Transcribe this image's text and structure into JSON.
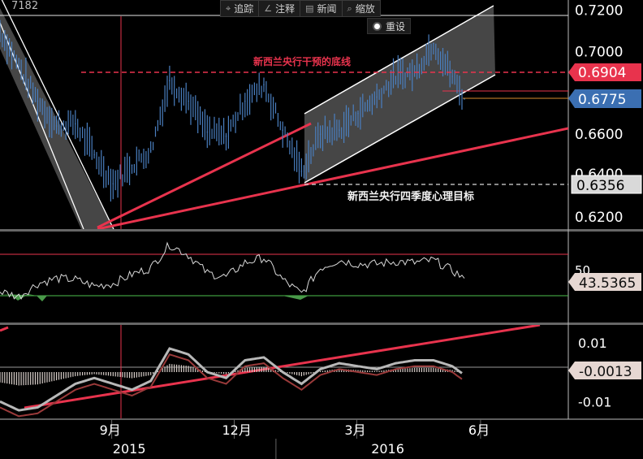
{
  "header": {
    "code_fragment": "7182"
  },
  "toolbar": {
    "items": [
      {
        "label": "追踪",
        "icon": "crosshair-icon"
      },
      {
        "label": "注释",
        "icon": "pencil-icon"
      },
      {
        "label": "新闻",
        "icon": "news-icon"
      },
      {
        "label": "缩放",
        "icon": "zoom-icon"
      }
    ],
    "reset_label": "重设"
  },
  "annotations": {
    "intervention_line": "新西兰央行干预的底线",
    "q4_target": "新西兰央行四季度心理目标"
  },
  "colors": {
    "background": "#000000",
    "price_line": "#4a7fc0",
    "trend_red": "#e8334d",
    "channel_white": "#ffffff",
    "current_badge": "#3b6fb2",
    "intervention_badge": "#e8334d",
    "target_badge": "#d9d9d9",
    "indicator_line": "#d9d9d9",
    "indicator_badge": "#e6d7d2"
  },
  "chart_data": [
    {
      "type": "line",
      "panel": "price",
      "title": "",
      "y_ticks": [
        "0.7200",
        "0.7000",
        "0.6600",
        "0.6200"
      ],
      "y_tick_values": [
        0.72,
        0.7,
        0.66,
        0.62
      ],
      "partial_tick_labels": [
        "0.6400"
      ],
      "ylim": [
        0.614,
        0.725
      ],
      "x_labels": [
        "9月",
        "12月",
        "3月",
        "6月"
      ],
      "x_years": [
        "2015",
        "2016"
      ],
      "markers": {
        "current": 0.6775,
        "current_label": "0.6775",
        "intervention": 0.6904,
        "intervention_label": "0.6904",
        "target": 0.6356,
        "target_label": "0.6356"
      },
      "series": [
        {
          "x": [
            "2015-06-10",
            "2015-06-24",
            "2015-07-08",
            "2015-07-22",
            "2015-08-05",
            "2015-08-19",
            "2015-09-02",
            "2015-09-16",
            "2015-09-30",
            "2015-10-14",
            "2015-10-28",
            "2015-11-11",
            "2015-11-25",
            "2015-12-09",
            "2015-12-23",
            "2016-01-06",
            "2016-01-20",
            "2016-02-03",
            "2016-02-17",
            "2016-03-02",
            "2016-03-16",
            "2016-03-30",
            "2016-04-13",
            "2016-04-27",
            "2016-05-11",
            "2016-05-20"
          ],
          "values": [
            0.71,
            0.693,
            0.676,
            0.664,
            0.665,
            0.65,
            0.636,
            0.645,
            0.652,
            0.686,
            0.676,
            0.661,
            0.659,
            0.676,
            0.684,
            0.662,
            0.642,
            0.66,
            0.662,
            0.67,
            0.678,
            0.688,
            0.69,
            0.704,
            0.688,
            0.677
          ]
        }
      ]
    },
    {
      "type": "line",
      "panel": "oscillator",
      "y_ticks": [
        "50"
      ],
      "ylim": [
        10,
        80
      ],
      "current_label": "43.5365",
      "series": [
        {
          "x": [
            "2015-06-10",
            "2015-06-24",
            "2015-07-08",
            "2015-07-22",
            "2015-08-05",
            "2015-08-19",
            "2015-09-02",
            "2015-09-16",
            "2015-09-30",
            "2015-10-14",
            "2015-10-28",
            "2015-11-11",
            "2015-11-25",
            "2015-12-09",
            "2015-12-23",
            "2016-01-06",
            "2016-01-20",
            "2016-02-03",
            "2016-02-17",
            "2016-03-02",
            "2016-03-16",
            "2016-03-30",
            "2016-04-13",
            "2016-04-27",
            "2016-05-11",
            "2016-05-20"
          ],
          "values": [
            34,
            30,
            40,
            44,
            43,
            38,
            40,
            47,
            52,
            70,
            62,
            48,
            45,
            56,
            60,
            43,
            32,
            52,
            58,
            55,
            55,
            57,
            56,
            58,
            50,
            44
          ]
        }
      ]
    },
    {
      "type": "area",
      "panel": "macd",
      "y_ticks": [
        "0.01",
        "-0.01"
      ],
      "ylim": [
        -0.016,
        0.016
      ],
      "current_label": "-0.0013",
      "series": [
        {
          "x": [
            "2015-06-10",
            "2015-06-24",
            "2015-07-08",
            "2015-07-22",
            "2015-08-05",
            "2015-08-19",
            "2015-09-02",
            "2015-09-16",
            "2015-09-30",
            "2015-10-14",
            "2015-10-28",
            "2015-11-11",
            "2015-11-25",
            "2015-12-09",
            "2015-12-23",
            "2016-01-06",
            "2016-01-20",
            "2016-02-03",
            "2016-02-17",
            "2016-03-02",
            "2016-03-16",
            "2016-03-30",
            "2016-04-13",
            "2016-04-27",
            "2016-05-11",
            "2016-05-20"
          ],
          "values": [
            -0.01,
            -0.013,
            -0.012,
            -0.008,
            -0.004,
            -0.002,
            -0.004,
            -0.006,
            -0.003,
            0.008,
            0.006,
            0.0,
            -0.002,
            0.004,
            0.005,
            0.0,
            -0.004,
            0.001,
            0.003,
            0.002,
            0.001,
            0.003,
            0.004,
            0.004,
            0.002,
            -0.001
          ]
        }
      ]
    }
  ]
}
